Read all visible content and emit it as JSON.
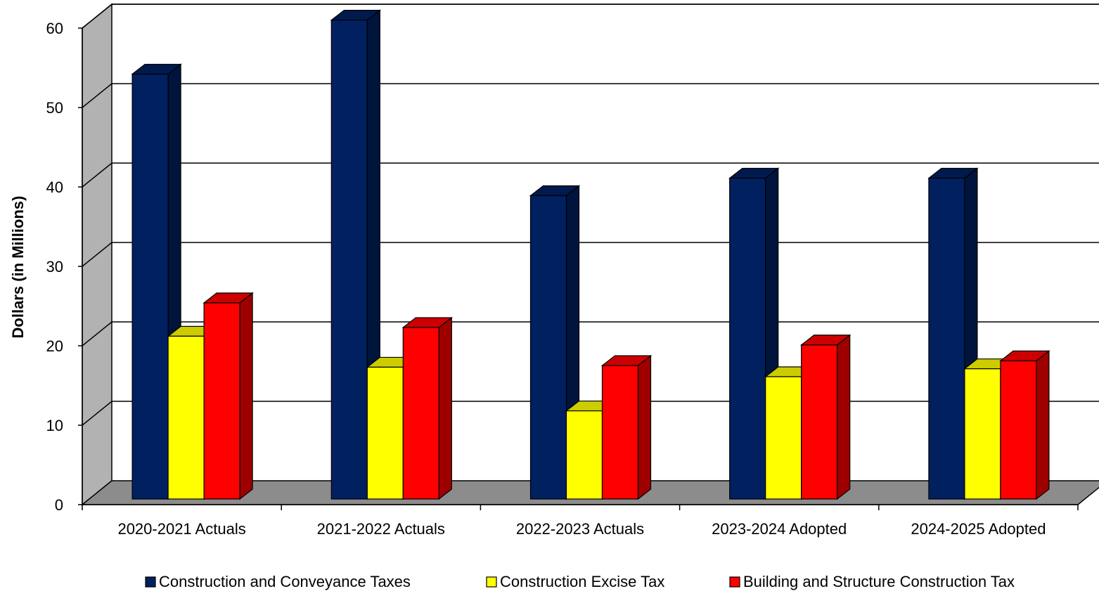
{
  "chart_data": {
    "type": "bar",
    "title": "",
    "xlabel": "",
    "ylabel": "Dollars (in Millions)",
    "ylim": [
      0,
      60
    ],
    "yticks": [
      0,
      10,
      20,
      30,
      40,
      50,
      60
    ],
    "grid": true,
    "legend_position": "bottom",
    "categories": [
      "2020-2021 Actuals",
      "2021-2022 Actuals",
      "2022-2023 Actuals",
      "2023-2024 Adopted",
      "2024-2025 Adopted"
    ],
    "series": [
      {
        "name": "Construction and Conveyance Taxes",
        "color": "#002060",
        "values": [
          53.5,
          60.3,
          38.2,
          40.4,
          40.4
        ]
      },
      {
        "name": "Construction Excise Tax",
        "color": "#FFFF00",
        "values": [
          20.5,
          16.6,
          11.1,
          15.4,
          16.4
        ]
      },
      {
        "name": "Building and Structure Construction Tax",
        "color": "#FF0000",
        "values": [
          24.7,
          21.6,
          16.8,
          19.4,
          17.4
        ]
      }
    ]
  }
}
